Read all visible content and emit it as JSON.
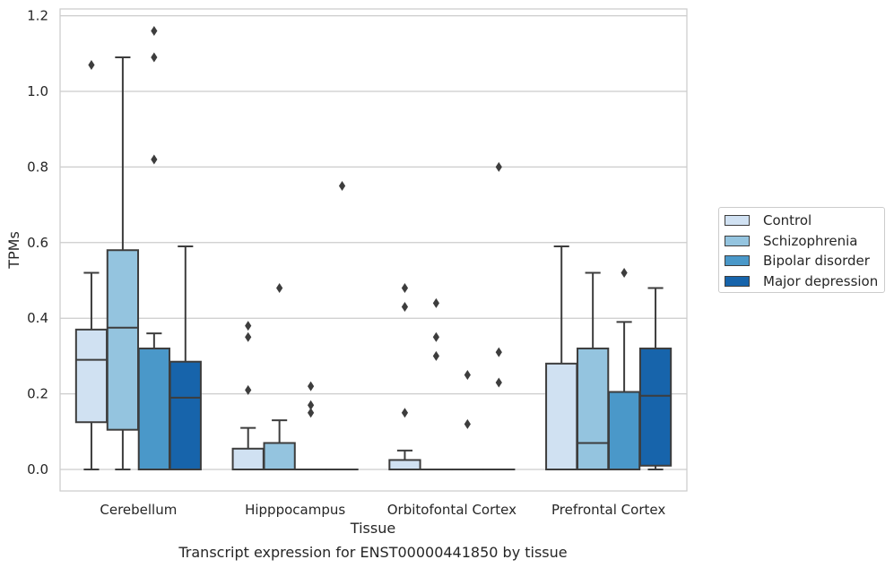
{
  "chart_data": {
    "type": "boxplot",
    "title": "Transcript expression for ENST00000441850 by tissue",
    "xlabel": "Tissue",
    "ylabel": "TPMs",
    "ylim": [
      -0.057,
      1.22
    ],
    "yticks": [
      "0.0",
      "0.2",
      "0.4",
      "0.6",
      "0.8",
      "1.0",
      "1.2"
    ],
    "ytick_values": [
      0,
      0.2,
      0.4,
      0.6,
      0.8,
      1.0,
      1.2
    ],
    "grid": "horizontal",
    "legend_position": "right",
    "categories": [
      "Cerebellum",
      "Hipppocampus",
      "Orbitofontal Cortex",
      "Prefrontal Cortex"
    ],
    "series": [
      {
        "name": "Control",
        "color": "#d0e1f2",
        "boxes": [
          {
            "whisker_low": 0.0,
            "q1": 0.125,
            "median": 0.29,
            "q3": 0.37,
            "whisker_high": 0.52,
            "outliers": [
              1.07
            ]
          },
          {
            "whisker_low": 0.0,
            "q1": 0.0,
            "median": 0.0,
            "q3": 0.055,
            "whisker_high": 0.11,
            "outliers": [
              0.38,
              0.35,
              0.21
            ]
          },
          {
            "whisker_low": 0.0,
            "q1": 0.0,
            "median": 0.0,
            "q3": 0.025,
            "whisker_high": 0.05,
            "outliers": [
              0.48,
              0.43,
              0.15
            ]
          },
          {
            "whisker_low": 0.0,
            "q1": 0.0,
            "median": 0.0,
            "q3": 0.28,
            "whisker_high": 0.59,
            "outliers": []
          }
        ]
      },
      {
        "name": "Schizophrenia",
        "color": "#94c4df",
        "boxes": [
          {
            "whisker_low": 0.0,
            "q1": 0.105,
            "median": 0.375,
            "q3": 0.58,
            "whisker_high": 1.09,
            "outliers": []
          },
          {
            "whisker_low": 0.0,
            "q1": 0.0,
            "median": 0.0,
            "q3": 0.07,
            "whisker_high": 0.13,
            "outliers": [
              0.48
            ]
          },
          {
            "whisker_low": 0.0,
            "q1": 0.0,
            "median": 0.0,
            "q3": 0.0,
            "whisker_high": 0.0,
            "outliers": [
              0.44,
              0.35,
              0.3
            ]
          },
          {
            "whisker_low": 0.0,
            "q1": 0.0,
            "median": 0.07,
            "q3": 0.32,
            "whisker_high": 0.52,
            "outliers": []
          }
        ]
      },
      {
        "name": "Bipolar disorder",
        "color": "#4a98c9",
        "boxes": [
          {
            "whisker_low": 0.0,
            "q1": 0.0,
            "median": 0.0,
            "q3": 0.32,
            "whisker_high": 0.36,
            "outliers": [
              1.16,
              1.09,
              0.82
            ]
          },
          {
            "whisker_low": 0.0,
            "q1": 0.0,
            "median": 0.0,
            "q3": 0.0,
            "whisker_high": 0.0,
            "outliers": [
              0.22,
              0.17,
              0.15
            ]
          },
          {
            "whisker_low": 0.0,
            "q1": 0.0,
            "median": 0.0,
            "q3": 0.0,
            "whisker_high": 0.0,
            "outliers": [
              0.25,
              0.12
            ]
          },
          {
            "whisker_low": 0.0,
            "q1": 0.0,
            "median": 0.0,
            "q3": 0.205,
            "whisker_high": 0.39,
            "outliers": [
              0.52
            ]
          }
        ]
      },
      {
        "name": "Major depression",
        "color": "#1764ab",
        "boxes": [
          {
            "whisker_low": 0.0,
            "q1": 0.0,
            "median": 0.19,
            "q3": 0.285,
            "whisker_high": 0.59,
            "outliers": []
          },
          {
            "whisker_low": 0.0,
            "q1": 0.0,
            "median": 0.0,
            "q3": 0.0,
            "whisker_high": 0.0,
            "outliers": [
              0.75
            ]
          },
          {
            "whisker_low": 0.0,
            "q1": 0.0,
            "median": 0.0,
            "q3": 0.0,
            "whisker_high": 0.0,
            "outliers": [
              0.8,
              0.31,
              0.23
            ]
          },
          {
            "whisker_low": 0.0,
            "q1": 0.01,
            "median": 0.195,
            "q3": 0.32,
            "whisker_high": 0.48,
            "outliers": []
          }
        ]
      }
    ]
  }
}
